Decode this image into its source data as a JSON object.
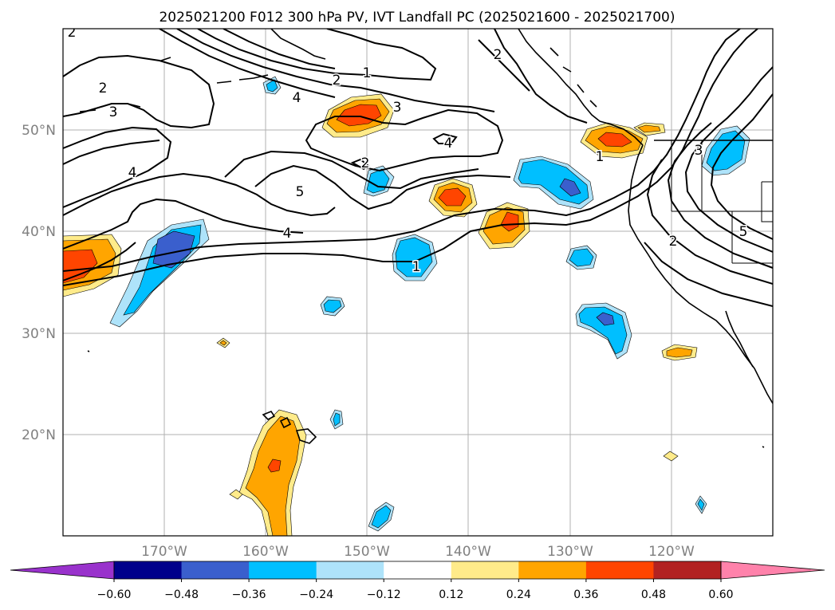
{
  "title": "2025021200 F012 300 hPa PV, IVT Landfall PC (2025021600 - 2025021700)",
  "map": {
    "lon_range": [
      -180,
      -110
    ],
    "lat_range": [
      10,
      60
    ],
    "longitude_labels": [
      "170°W",
      "160°W",
      "150°W",
      "140°W",
      "130°W",
      "120°W"
    ],
    "latitude_labels": [
      "50°N",
      "40°N",
      "30°N",
      "20°N"
    ],
    "gridlines": true
  },
  "colorbar": {
    "colors": [
      "#9932cc",
      "#00008b",
      "#3a5fcd",
      "#00bfff",
      "#aee3fa",
      "#ffffff",
      "#ffeb8a",
      "#ffa500",
      "#ff4500",
      "#b22222",
      "#ff82ab"
    ],
    "tick_labels": [
      "−0.60",
      "−0.48",
      "−0.36",
      "−0.24",
      "−0.12",
      "0.12",
      "0.24",
      "0.36",
      "0.48",
      "0.60"
    ],
    "extend": "both"
  },
  "pv_contour_labels": [
    "2",
    "2",
    "1",
    "3",
    "4",
    "2",
    "4",
    "1",
    "2",
    "5",
    "4",
    "1",
    "3",
    "4",
    "5",
    "2",
    "2",
    "3"
  ]
}
